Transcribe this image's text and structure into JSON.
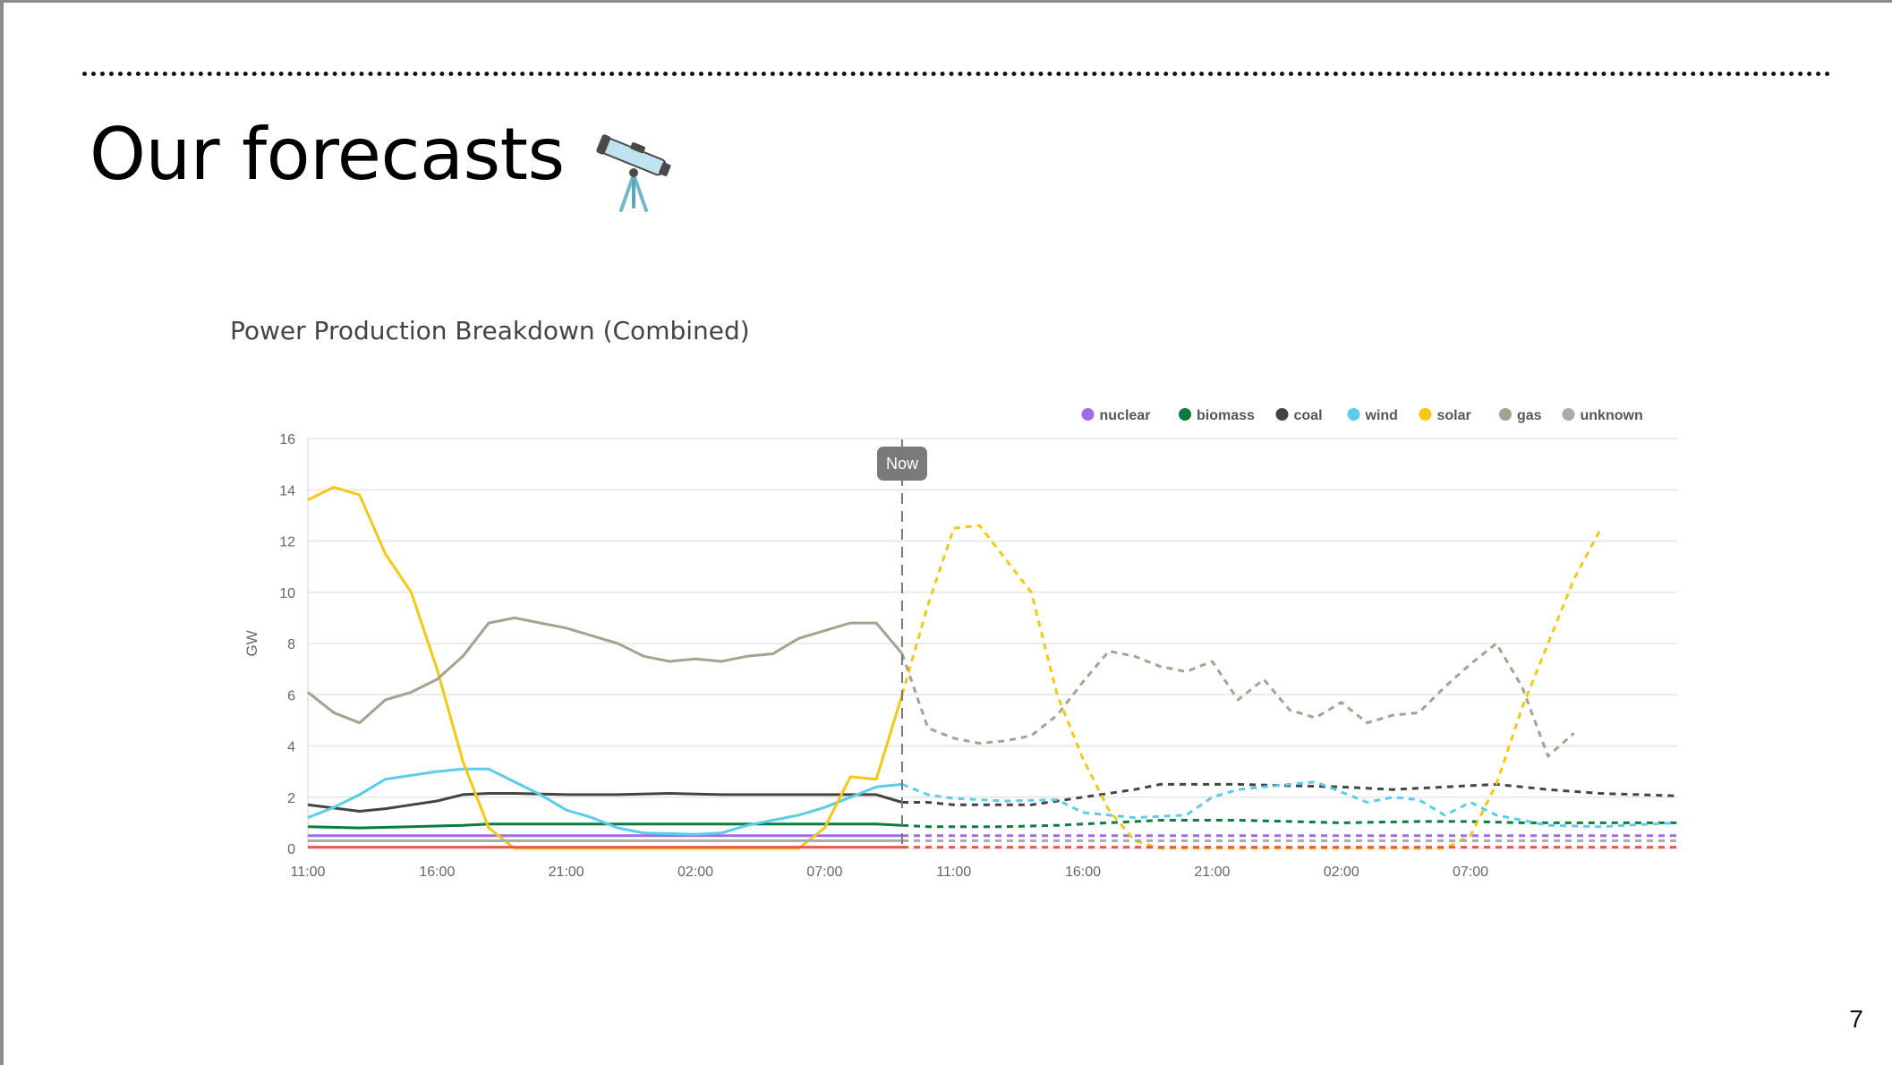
{
  "slide": {
    "title": "Our forecasts",
    "title_icon": "telescope-icon",
    "page_number": "7"
  },
  "chart_data": {
    "type": "line",
    "title": "Power Production Breakdown (Combined)",
    "xlabel": "",
    "ylabel": "GW",
    "ylim": [
      0,
      16
    ],
    "yticks": [
      0,
      2,
      4,
      6,
      8,
      10,
      12,
      14,
      16
    ],
    "x_hours": [
      0,
      53
    ],
    "xticks": [
      {
        "hour": 0,
        "label": "11:00"
      },
      {
        "hour": 5,
        "label": "16:00"
      },
      {
        "hour": 10,
        "label": "21:00"
      },
      {
        "hour": 15,
        "label": "02:00"
      },
      {
        "hour": 20,
        "label": "07:00"
      },
      {
        "hour": 25,
        "label": "11:00"
      },
      {
        "hour": 30,
        "label": "16:00"
      },
      {
        "hour": 35,
        "label": "21:00"
      },
      {
        "hour": 40,
        "label": "02:00"
      },
      {
        "hour": 45,
        "label": "07:00"
      }
    ],
    "now": {
      "hour": 23,
      "label": "Now"
    },
    "grid": true,
    "legend_position": "top-right",
    "legend": [
      "nuclear",
      "biomass",
      "coal",
      "wind",
      "solar",
      "gas",
      "unknown"
    ],
    "series": [
      {
        "name": "nuclear",
        "color": "#9b6ee8",
        "in_legend": true,
        "points": [
          [
            0,
            0.5
          ],
          [
            23,
            0.5
          ],
          [
            53,
            0.5
          ]
        ]
      },
      {
        "name": "biomass",
        "color": "#0a7d3e",
        "in_legend": true,
        "points": [
          [
            0,
            0.85
          ],
          [
            2,
            0.8
          ],
          [
            4,
            0.85
          ],
          [
            6,
            0.9
          ],
          [
            7,
            0.95
          ],
          [
            10,
            0.95
          ],
          [
            15,
            0.95
          ],
          [
            20,
            0.95
          ],
          [
            22,
            0.95
          ],
          [
            23,
            0.9
          ],
          [
            24,
            0.85
          ],
          [
            27,
            0.85
          ],
          [
            29,
            0.9
          ],
          [
            31,
            1.0
          ],
          [
            33,
            1.1
          ],
          [
            36,
            1.1
          ],
          [
            38,
            1.05
          ],
          [
            40,
            1.0
          ],
          [
            43,
            1.05
          ],
          [
            45,
            1.05
          ],
          [
            47,
            1.0
          ],
          [
            50,
            1.0
          ],
          [
            53,
            1.0
          ]
        ]
      },
      {
        "name": "coal",
        "color": "#444444",
        "in_legend": true,
        "points": [
          [
            0,
            1.7
          ],
          [
            2,
            1.45
          ],
          [
            3,
            1.55
          ],
          [
            4,
            1.7
          ],
          [
            5,
            1.85
          ],
          [
            6,
            2.1
          ],
          [
            7,
            2.15
          ],
          [
            8,
            2.15
          ],
          [
            10,
            2.1
          ],
          [
            12,
            2.1
          ],
          [
            14,
            2.15
          ],
          [
            16,
            2.1
          ],
          [
            18,
            2.1
          ],
          [
            20,
            2.1
          ],
          [
            22,
            2.1
          ],
          [
            23,
            1.8
          ],
          [
            24,
            1.8
          ],
          [
            25,
            1.7
          ],
          [
            28,
            1.7
          ],
          [
            30,
            2.0
          ],
          [
            32,
            2.3
          ],
          [
            33,
            2.5
          ],
          [
            36,
            2.5
          ],
          [
            38,
            2.45
          ],
          [
            40,
            2.4
          ],
          [
            42,
            2.3
          ],
          [
            44,
            2.4
          ],
          [
            46,
            2.5
          ],
          [
            48,
            2.3
          ],
          [
            50,
            2.15
          ],
          [
            53,
            2.05
          ]
        ]
      },
      {
        "name": "wind",
        "color": "#5bcde8",
        "in_legend": true,
        "points": [
          [
            0,
            1.2
          ],
          [
            1,
            1.6
          ],
          [
            2,
            2.1
          ],
          [
            3,
            2.7
          ],
          [
            4,
            2.85
          ],
          [
            5,
            3.0
          ],
          [
            6,
            3.1
          ],
          [
            7,
            3.1
          ],
          [
            8,
            2.6
          ],
          [
            9,
            2.1
          ],
          [
            10,
            1.5
          ],
          [
            11,
            1.2
          ],
          [
            12,
            0.8
          ],
          [
            13,
            0.6
          ],
          [
            15,
            0.55
          ],
          [
            16,
            0.6
          ],
          [
            17,
            0.9
          ],
          [
            18,
            1.1
          ],
          [
            19,
            1.3
          ],
          [
            20,
            1.6
          ],
          [
            21,
            2.0
          ],
          [
            22,
            2.4
          ],
          [
            23,
            2.5
          ],
          [
            24,
            2.1
          ],
          [
            25,
            1.95
          ],
          [
            27,
            1.85
          ],
          [
            29,
            1.9
          ],
          [
            30,
            1.4
          ],
          [
            32,
            1.2
          ],
          [
            34,
            1.3
          ],
          [
            35,
            2.0
          ],
          [
            36,
            2.3
          ],
          [
            38,
            2.5
          ],
          [
            39,
            2.6
          ],
          [
            40,
            2.2
          ],
          [
            41,
            1.8
          ],
          [
            42,
            2.0
          ],
          [
            43,
            1.9
          ],
          [
            44,
            1.3
          ],
          [
            45,
            1.8
          ],
          [
            46,
            1.3
          ],
          [
            48,
            0.9
          ],
          [
            50,
            0.85
          ],
          [
            53,
            1.0
          ]
        ]
      },
      {
        "name": "solar",
        "color": "#f5c816",
        "in_legend": true,
        "points": [
          [
            0,
            13.6
          ],
          [
            1,
            14.1
          ],
          [
            2,
            13.8
          ],
          [
            3,
            11.5
          ],
          [
            4,
            10.0
          ],
          [
            5,
            7.0
          ],
          [
            6,
            3.4
          ],
          [
            7,
            0.8
          ],
          [
            8,
            0.0
          ],
          [
            19,
            0.0
          ],
          [
            20,
            0.8
          ],
          [
            21,
            2.8
          ],
          [
            22,
            2.7
          ],
          [
            23,
            6.0
          ],
          [
            24,
            9.5
          ],
          [
            25,
            12.5
          ],
          [
            26,
            12.6
          ],
          [
            27,
            11.3
          ],
          [
            28,
            10.0
          ],
          [
            29,
            6.0
          ],
          [
            30,
            3.5
          ],
          [
            31,
            1.5
          ],
          [
            32,
            0.3
          ],
          [
            33,
            0.0
          ],
          [
            44,
            0.0
          ],
          [
            45,
            0.5
          ],
          [
            46,
            2.5
          ],
          [
            47,
            5.5
          ],
          [
            48,
            8.0
          ],
          [
            49,
            10.5
          ],
          [
            50,
            12.4
          ]
        ]
      },
      {
        "name": "gas",
        "color": "#a9a190",
        "in_legend": true,
        "points": [
          [
            0,
            6.1
          ],
          [
            1,
            5.3
          ],
          [
            2,
            4.9
          ],
          [
            3,
            5.8
          ],
          [
            4,
            6.1
          ],
          [
            5,
            6.6
          ],
          [
            6,
            7.5
          ],
          [
            7,
            8.8
          ],
          [
            8,
            9.0
          ],
          [
            9,
            8.8
          ],
          [
            10,
            8.6
          ],
          [
            11,
            8.3
          ],
          [
            12,
            8.0
          ],
          [
            13,
            7.5
          ],
          [
            14,
            7.3
          ],
          [
            15,
            7.4
          ],
          [
            16,
            7.3
          ],
          [
            17,
            7.5
          ],
          [
            18,
            7.6
          ],
          [
            19,
            8.2
          ],
          [
            20,
            8.5
          ],
          [
            21,
            8.8
          ],
          [
            22,
            8.8
          ],
          [
            23,
            7.6
          ],
          [
            24,
            4.7
          ],
          [
            25,
            4.3
          ],
          [
            26,
            4.1
          ],
          [
            27,
            4.2
          ],
          [
            28,
            4.4
          ],
          [
            29,
            5.2
          ],
          [
            30,
            6.5
          ],
          [
            31,
            7.7
          ],
          [
            32,
            7.5
          ],
          [
            33,
            7.1
          ],
          [
            34,
            6.9
          ],
          [
            35,
            7.3
          ],
          [
            36,
            5.8
          ],
          [
            37,
            6.6
          ],
          [
            38,
            5.4
          ],
          [
            39,
            5.1
          ],
          [
            40,
            5.7
          ],
          [
            41,
            4.9
          ],
          [
            42,
            5.2
          ],
          [
            43,
            5.3
          ],
          [
            44,
            6.3
          ],
          [
            45,
            7.2
          ],
          [
            46,
            8.0
          ],
          [
            47,
            6.3
          ],
          [
            48,
            3.6
          ],
          [
            49,
            4.5
          ]
        ]
      },
      {
        "name": "unknown",
        "color": "#aaaaaa",
        "in_legend": true,
        "points": [
          [
            0,
            0.3
          ],
          [
            23,
            0.3
          ],
          [
            53,
            0.3
          ]
        ]
      },
      {
        "name": "",
        "color": "#e8584f",
        "in_legend": false,
        "points": [
          [
            0,
            0.05
          ],
          [
            23,
            0.05
          ],
          [
            53,
            0.05
          ]
        ]
      }
    ]
  }
}
